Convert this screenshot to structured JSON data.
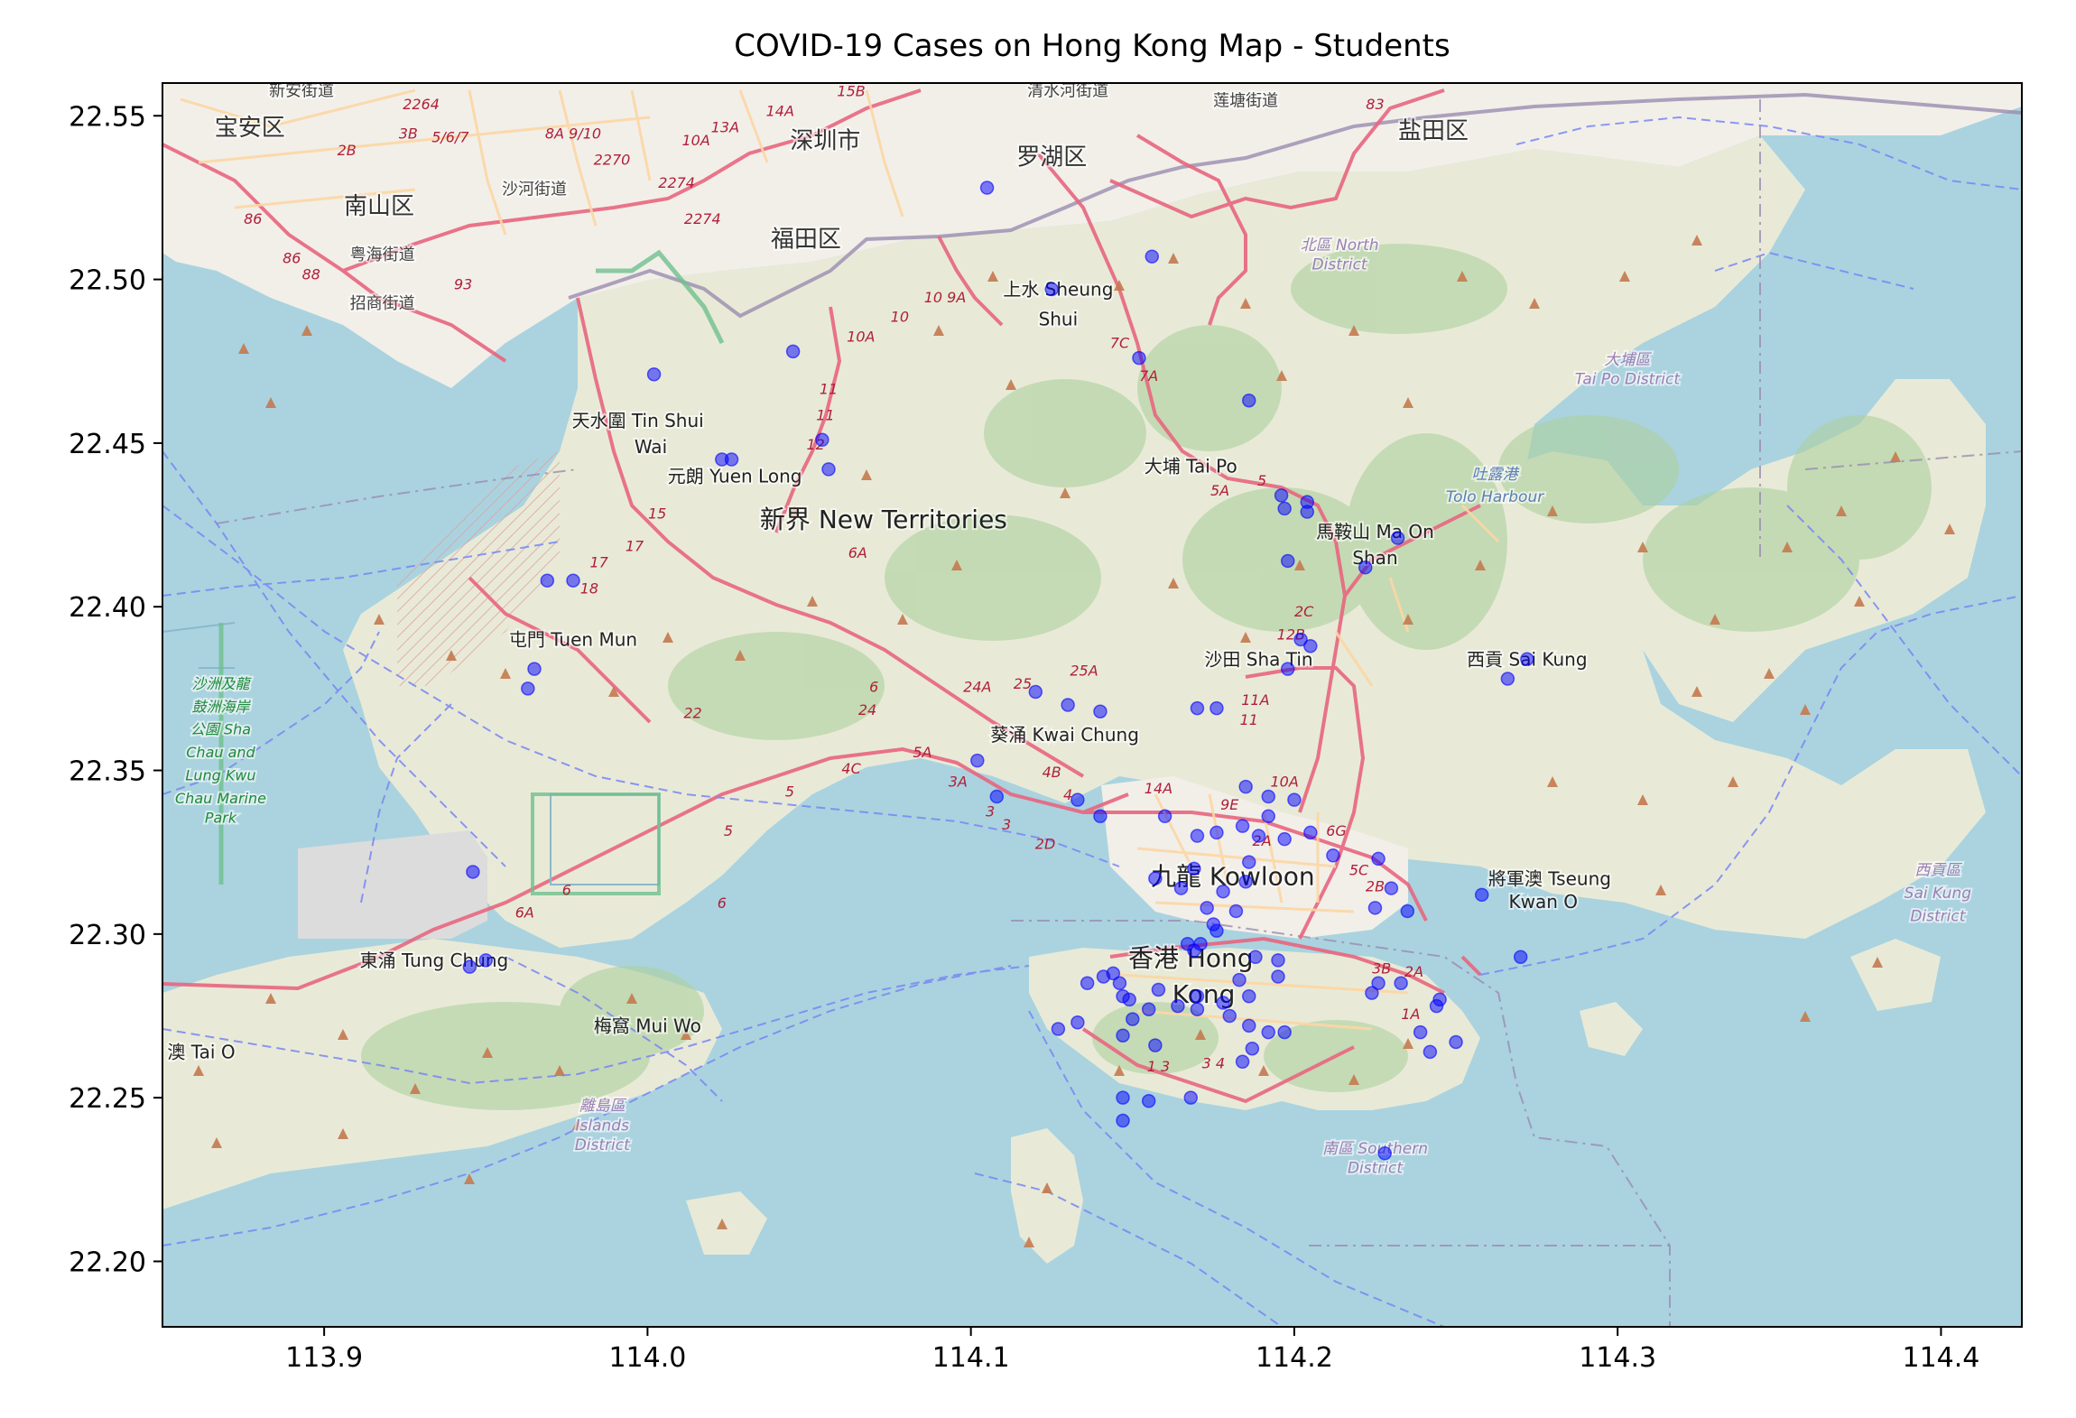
{
  "figure": {
    "title": "COVID-19 Cases on Hong Kong Map - Students"
  },
  "chart_data": {
    "type": "scatter",
    "title": "COVID-19 Cases on Hong Kong Map - Students",
    "xlabel": "",
    "ylabel": "",
    "xlim": [
      113.85,
      114.425
    ],
    "ylim": [
      22.18,
      22.56
    ],
    "xticks": [
      113.9,
      114.0,
      114.1,
      114.2,
      114.3,
      114.4
    ],
    "xtick_labels": [
      "113.9",
      "114.0",
      "114.1",
      "114.2",
      "114.3",
      "114.4"
    ],
    "yticks": [
      22.2,
      22.25,
      22.3,
      22.35,
      22.4,
      22.45,
      22.5,
      22.55
    ],
    "ytick_labels": [
      "22.20",
      "22.25",
      "22.30",
      "22.35",
      "22.40",
      "22.45",
      "22.50",
      "22.55"
    ],
    "grid": false,
    "marker_color": "#0000ff",
    "points": [
      {
        "x": 114.105,
        "y": 22.528
      },
      {
        "x": 114.156,
        "y": 22.507
      },
      {
        "x": 114.125,
        "y": 22.497
      },
      {
        "x": 114.045,
        "y": 22.478
      },
      {
        "x": 114.152,
        "y": 22.476
      },
      {
        "x": 114.002,
        "y": 22.471
      },
      {
        "x": 114.054,
        "y": 22.451
      },
      {
        "x": 114.023,
        "y": 22.445
      },
      {
        "x": 114.026,
        "y": 22.445
      },
      {
        "x": 114.056,
        "y": 22.442
      },
      {
        "x": 114.186,
        "y": 22.463
      },
      {
        "x": 114.196,
        "y": 22.434
      },
      {
        "x": 114.197,
        "y": 22.43
      },
      {
        "x": 114.204,
        "y": 22.432
      },
      {
        "x": 114.204,
        "y": 22.429
      },
      {
        "x": 114.232,
        "y": 22.421
      },
      {
        "x": 114.198,
        "y": 22.414
      },
      {
        "x": 114.222,
        "y": 22.412
      },
      {
        "x": 113.969,
        "y": 22.408
      },
      {
        "x": 113.977,
        "y": 22.408
      },
      {
        "x": 114.202,
        "y": 22.39
      },
      {
        "x": 114.205,
        "y": 22.388
      },
      {
        "x": 114.198,
        "y": 22.381
      },
      {
        "x": 114.272,
        "y": 22.384
      },
      {
        "x": 114.266,
        "y": 22.378
      },
      {
        "x": 113.965,
        "y": 22.381
      },
      {
        "x": 113.963,
        "y": 22.375
      },
      {
        "x": 114.12,
        "y": 22.374
      },
      {
        "x": 114.13,
        "y": 22.37
      },
      {
        "x": 114.14,
        "y": 22.368
      },
      {
        "x": 114.17,
        "y": 22.369
      },
      {
        "x": 114.176,
        "y": 22.369
      },
      {
        "x": 114.102,
        "y": 22.353
      },
      {
        "x": 114.108,
        "y": 22.342
      },
      {
        "x": 114.133,
        "y": 22.341
      },
      {
        "x": 114.14,
        "y": 22.336
      },
      {
        "x": 114.16,
        "y": 22.336
      },
      {
        "x": 114.185,
        "y": 22.345
      },
      {
        "x": 114.192,
        "y": 22.342
      },
      {
        "x": 114.2,
        "y": 22.341
      },
      {
        "x": 114.192,
        "y": 22.336
      },
      {
        "x": 114.184,
        "y": 22.333
      },
      {
        "x": 114.176,
        "y": 22.331
      },
      {
        "x": 114.17,
        "y": 22.33
      },
      {
        "x": 114.189,
        "y": 22.33
      },
      {
        "x": 114.197,
        "y": 22.329
      },
      {
        "x": 114.205,
        "y": 22.331
      },
      {
        "x": 114.212,
        "y": 22.324
      },
      {
        "x": 114.226,
        "y": 22.323
      },
      {
        "x": 114.169,
        "y": 22.32
      },
      {
        "x": 114.157,
        "y": 22.317
      },
      {
        "x": 114.165,
        "y": 22.314
      },
      {
        "x": 114.186,
        "y": 22.322
      },
      {
        "x": 114.185,
        "y": 22.316
      },
      {
        "x": 114.178,
        "y": 22.313
      },
      {
        "x": 114.173,
        "y": 22.308
      },
      {
        "x": 114.175,
        "y": 22.303
      },
      {
        "x": 114.176,
        "y": 22.301
      },
      {
        "x": 114.182,
        "y": 22.307
      },
      {
        "x": 114.171,
        "y": 22.297
      },
      {
        "x": 114.167,
        "y": 22.297
      },
      {
        "x": 114.169,
        "y": 22.295
      },
      {
        "x": 114.225,
        "y": 22.308
      },
      {
        "x": 114.235,
        "y": 22.307
      },
      {
        "x": 114.258,
        "y": 22.312
      },
      {
        "x": 114.23,
        "y": 22.314
      },
      {
        "x": 114.195,
        "y": 22.292
      },
      {
        "x": 114.188,
        "y": 22.293
      },
      {
        "x": 114.195,
        "y": 22.287
      },
      {
        "x": 114.183,
        "y": 22.286
      },
      {
        "x": 114.178,
        "y": 22.279
      },
      {
        "x": 114.186,
        "y": 22.281
      },
      {
        "x": 114.17,
        "y": 22.281
      },
      {
        "x": 114.164,
        "y": 22.278
      },
      {
        "x": 114.17,
        "y": 22.277
      },
      {
        "x": 114.18,
        "y": 22.275
      },
      {
        "x": 114.186,
        "y": 22.272
      },
      {
        "x": 114.192,
        "y": 22.27
      },
      {
        "x": 114.197,
        "y": 22.27
      },
      {
        "x": 114.144,
        "y": 22.288
      },
      {
        "x": 114.141,
        "y": 22.287
      },
      {
        "x": 114.146,
        "y": 22.285
      },
      {
        "x": 114.136,
        "y": 22.285
      },
      {
        "x": 114.147,
        "y": 22.281
      },
      {
        "x": 114.149,
        "y": 22.28
      },
      {
        "x": 114.158,
        "y": 22.283
      },
      {
        "x": 114.155,
        "y": 22.277
      },
      {
        "x": 114.15,
        "y": 22.274
      },
      {
        "x": 114.133,
        "y": 22.273
      },
      {
        "x": 114.127,
        "y": 22.271
      },
      {
        "x": 114.147,
        "y": 22.269
      },
      {
        "x": 114.157,
        "y": 22.266
      },
      {
        "x": 114.187,
        "y": 22.265
      },
      {
        "x": 114.184,
        "y": 22.261
      },
      {
        "x": 114.233,
        "y": 22.285
      },
      {
        "x": 114.226,
        "y": 22.285
      },
      {
        "x": 114.224,
        "y": 22.282
      },
      {
        "x": 114.245,
        "y": 22.28
      },
      {
        "x": 114.244,
        "y": 22.278
      },
      {
        "x": 114.242,
        "y": 22.264
      },
      {
        "x": 114.239,
        "y": 22.27
      },
      {
        "x": 114.168,
        "y": 22.25
      },
      {
        "x": 114.147,
        "y": 22.25
      },
      {
        "x": 114.155,
        "y": 22.249
      },
      {
        "x": 114.147,
        "y": 22.243
      },
      {
        "x": 114.228,
        "y": 22.233
      },
      {
        "x": 113.946,
        "y": 22.319
      },
      {
        "x": 113.95,
        "y": 22.292
      },
      {
        "x": 113.945,
        "y": 22.29
      },
      {
        "x": 114.27,
        "y": 22.293
      },
      {
        "x": 114.25,
        "y": 22.267
      }
    ]
  },
  "map": {
    "labels": [
      {
        "text": "深圳市",
        "lon": 114.055,
        "lat": 22.54,
        "kind": "city"
      },
      {
        "text": "罗湖区",
        "lon": 114.125,
        "lat": 22.535,
        "kind": "city"
      },
      {
        "text": "盐田区",
        "lon": 114.243,
        "lat": 22.543,
        "kind": "city"
      },
      {
        "text": "宝安区",
        "lon": 113.877,
        "lat": 22.544,
        "kind": "city"
      },
      {
        "text": "南山区",
        "lon": 113.917,
        "lat": 22.52,
        "kind": "city"
      },
      {
        "text": "福田区",
        "lon": 114.049,
        "lat": 22.51,
        "kind": "city"
      },
      {
        "text": "新安街道",
        "lon": 113.893,
        "lat": 22.556,
        "kind": "street"
      },
      {
        "text": "清水河街道",
        "lon": 114.13,
        "lat": 22.556,
        "kind": "street"
      },
      {
        "text": "莲塘街道",
        "lon": 114.185,
        "lat": 22.553,
        "kind": "street"
      },
      {
        "text": "沙河街道",
        "lon": 113.965,
        "lat": 22.526,
        "kind": "street"
      },
      {
        "text": "粤海街道",
        "lon": 113.918,
        "lat": 22.506,
        "kind": "street"
      },
      {
        "text": "招商街道",
        "lon": 113.918,
        "lat": 22.491,
        "kind": "street"
      },
      {
        "text": "北區 North",
        "lon": 114.214,
        "lat": 22.509,
        "kind": "district"
      },
      {
        "text": "District",
        "lon": 114.214,
        "lat": 22.503,
        "kind": "district"
      },
      {
        "text": "上水 Sheung",
        "lon": 114.127,
        "lat": 22.495,
        "kind": "place"
      },
      {
        "text": "Shui",
        "lon": 114.127,
        "lat": 22.486,
        "kind": "place"
      },
      {
        "text": "大埔區",
        "lon": 114.303,
        "lat": 22.474,
        "kind": "district"
      },
      {
        "text": "Tai Po District",
        "lon": 114.303,
        "lat": 22.468,
        "kind": "district"
      },
      {
        "text": "天水圍 Tin Shui",
        "lon": 113.997,
        "lat": 22.455,
        "kind": "place"
      },
      {
        "text": "Wai",
        "lon": 114.001,
        "lat": 22.447,
        "kind": "place"
      },
      {
        "text": "元朗 Yuen Long",
        "lon": 114.027,
        "lat": 22.438,
        "kind": "place"
      },
      {
        "text": "大埔 Tai Po",
        "lon": 114.168,
        "lat": 22.441,
        "kind": "place"
      },
      {
        "text": "吐露港",
        "lon": 114.262,
        "lat": 22.439,
        "kind": "water"
      },
      {
        "text": "Tolo Harbour",
        "lon": 114.262,
        "lat": 22.432,
        "kind": "water"
      },
      {
        "text": "新界 New Territories",
        "lon": 114.073,
        "lat": 22.424,
        "kind": "region"
      },
      {
        "text": "馬鞍山 Ma On",
        "lon": 114.225,
        "lat": 22.421,
        "kind": "place"
      },
      {
        "text": "Shan",
        "lon": 114.225,
        "lat": 22.413,
        "kind": "place"
      },
      {
        "text": "屯門 Tuen Mun",
        "lon": 113.977,
        "lat": 22.388,
        "kind": "place"
      },
      {
        "text": "沙田 Sha Tin",
        "lon": 114.189,
        "lat": 22.382,
        "kind": "place"
      },
      {
        "text": "西貢 Sai Kung",
        "lon": 114.272,
        "lat": 22.382,
        "kind": "place"
      },
      {
        "text": "沙洲及龍",
        "lon": 113.868,
        "lat": 22.375,
        "kind": "park"
      },
      {
        "text": "鼓洲海岸",
        "lon": 113.868,
        "lat": 22.368,
        "kind": "park"
      },
      {
        "text": "公園 Sha",
        "lon": 113.868,
        "lat": 22.361,
        "kind": "park"
      },
      {
        "text": "Chau and",
        "lon": 113.868,
        "lat": 22.354,
        "kind": "park"
      },
      {
        "text": "Lung Kwu",
        "lon": 113.868,
        "lat": 22.347,
        "kind": "park"
      },
      {
        "text": "Chau Marine",
        "lon": 113.868,
        "lat": 22.34,
        "kind": "park"
      },
      {
        "text": "Park",
        "lon": 113.868,
        "lat": 22.334,
        "kind": "park"
      },
      {
        "text": "葵涌 Kwai Chung",
        "lon": 114.129,
        "lat": 22.359,
        "kind": "place"
      },
      {
        "text": "九龍 Kowloon",
        "lon": 114.181,
        "lat": 22.315,
        "kind": "region"
      },
      {
        "text": "將軍澳 Tseung",
        "lon": 114.279,
        "lat": 22.315,
        "kind": "place"
      },
      {
        "text": "Kwan O",
        "lon": 114.277,
        "lat": 22.308,
        "kind": "place"
      },
      {
        "text": "西貢區",
        "lon": 114.399,
        "lat": 22.318,
        "kind": "district"
      },
      {
        "text": "Sai Kung",
        "lon": 114.399,
        "lat": 22.311,
        "kind": "district"
      },
      {
        "text": "District",
        "lon": 114.399,
        "lat": 22.304,
        "kind": "district"
      },
      {
        "text": "東涌 Tung Chung",
        "lon": 113.934,
        "lat": 22.29,
        "kind": "place"
      },
      {
        "text": "香港 Hong",
        "lon": 114.168,
        "lat": 22.29,
        "kind": "region"
      },
      {
        "text": "Kong",
        "lon": 114.172,
        "lat": 22.279,
        "kind": "region"
      },
      {
        "text": "梅窩 Mui Wo",
        "lon": 114.0,
        "lat": 22.27,
        "kind": "place"
      },
      {
        "text": "澳 Tai O",
        "lon": 113.862,
        "lat": 22.262,
        "kind": "place"
      },
      {
        "text": "離島區",
        "lon": 113.986,
        "lat": 22.246,
        "kind": "district"
      },
      {
        "text": "Islands",
        "lon": 113.986,
        "lat": 22.24,
        "kind": "district"
      },
      {
        "text": "District",
        "lon": 113.986,
        "lat": 22.234,
        "kind": "district"
      },
      {
        "text": "南區 Southern",
        "lon": 114.225,
        "lat": 22.233,
        "kind": "district"
      },
      {
        "text": "District",
        "lon": 114.225,
        "lat": 22.227,
        "kind": "district"
      }
    ],
    "route_labels": [
      {
        "text": "2264",
        "lon": 113.93,
        "lat": 22.552
      },
      {
        "text": "8A 9/10",
        "lon": 113.977,
        "lat": 22.543
      },
      {
        "text": "13A",
        "lon": 114.024,
        "lat": 22.545
      },
      {
        "text": "14A",
        "lon": 114.041,
        "lat": 22.55
      },
      {
        "text": "15B",
        "lon": 114.063,
        "lat": 22.556
      },
      {
        "text": "10A",
        "lon": 114.015,
        "lat": 22.541
      },
      {
        "text": "2270",
        "lon": 113.989,
        "lat": 22.535
      },
      {
        "text": "2274",
        "lon": 114.009,
        "lat": 22.528
      },
      {
        "text": "2274",
        "lon": 114.017,
        "lat": 22.517
      },
      {
        "text": "3B",
        "lon": 113.926,
        "lat": 22.543
      },
      {
        "text": "5/6/7",
        "lon": 113.939,
        "lat": 22.542
      },
      {
        "text": "2B",
        "lon": 113.907,
        "lat": 22.538
      },
      {
        "text": "86",
        "lon": 113.878,
        "lat": 22.517
      },
      {
        "text": "86",
        "lon": 113.89,
        "lat": 22.505
      },
      {
        "text": "88",
        "lon": 113.896,
        "lat": 22.5
      },
      {
        "text": "93",
        "lon": 113.943,
        "lat": 22.497
      },
      {
        "text": "83",
        "lon": 114.225,
        "lat": 22.552
      },
      {
        "text": "10 9A",
        "lon": 114.092,
        "lat": 22.493
      },
      {
        "text": "10A",
        "lon": 114.066,
        "lat": 22.481
      },
      {
        "text": "10",
        "lon": 114.078,
        "lat": 22.487
      },
      {
        "text": "7C",
        "lon": 114.146,
        "lat": 22.479
      },
      {
        "text": "7A",
        "lon": 114.155,
        "lat": 22.469
      },
      {
        "text": "11",
        "lon": 114.056,
        "lat": 22.465
      },
      {
        "text": "11",
        "lon": 114.055,
        "lat": 22.457
      },
      {
        "text": "12",
        "lon": 114.052,
        "lat": 22.448
      },
      {
        "text": "5A",
        "lon": 114.177,
        "lat": 22.434
      },
      {
        "text": "5",
        "lon": 114.19,
        "lat": 22.437
      },
      {
        "text": "15",
        "lon": 114.003,
        "lat": 22.427
      },
      {
        "text": "17",
        "lon": 113.996,
        "lat": 22.417
      },
      {
        "text": "17",
        "lon": 113.985,
        "lat": 22.412
      },
      {
        "text": "18",
        "lon": 113.982,
        "lat": 22.404
      },
      {
        "text": "6A",
        "lon": 114.065,
        "lat": 22.415
      },
      {
        "text": "2C",
        "lon": 114.203,
        "lat": 22.397
      },
      {
        "text": "12B",
        "lon": 114.199,
        "lat": 22.39
      },
      {
        "text": "25A",
        "lon": 114.135,
        "lat": 22.379
      },
      {
        "text": "24A",
        "lon": 114.102,
        "lat": 22.374
      },
      {
        "text": "25",
        "lon": 114.116,
        "lat": 22.375
      },
      {
        "text": "11A",
        "lon": 114.188,
        "lat": 22.37
      },
      {
        "text": "11",
        "lon": 114.186,
        "lat": 22.364
      },
      {
        "text": "6",
        "lon": 114.07,
        "lat": 22.374
      },
      {
        "text": "24",
        "lon": 114.068,
        "lat": 22.367
      },
      {
        "text": "22",
        "lon": 114.014,
        "lat": 22.366
      },
      {
        "text": "5A",
        "lon": 114.085,
        "lat": 22.354
      },
      {
        "text": "4C",
        "lon": 114.063,
        "lat": 22.349
      },
      {
        "text": "4B",
        "lon": 114.125,
        "lat": 22.348
      },
      {
        "text": "4",
        "lon": 114.13,
        "lat": 22.341
      },
      {
        "text": "3A",
        "lon": 114.096,
        "lat": 22.345
      },
      {
        "text": "3",
        "lon": 114.106,
        "lat": 22.336
      },
      {
        "text": "3",
        "lon": 114.111,
        "lat": 22.332
      },
      {
        "text": "14A",
        "lon": 114.158,
        "lat": 22.343
      },
      {
        "text": "10A",
        "lon": 114.197,
        "lat": 22.345
      },
      {
        "text": "9E",
        "lon": 114.18,
        "lat": 22.338
      },
      {
        "text": "2A",
        "lon": 114.19,
        "lat": 22.327
      },
      {
        "text": "6G",
        "lon": 114.213,
        "lat": 22.33
      },
      {
        "text": "5C",
        "lon": 114.22,
        "lat": 22.318
      },
      {
        "text": "2B",
        "lon": 114.225,
        "lat": 22.313
      },
      {
        "text": "2D",
        "lon": 114.123,
        "lat": 22.326
      },
      {
        "text": "5",
        "lon": 114.044,
        "lat": 22.342
      },
      {
        "text": "5",
        "lon": 114.025,
        "lat": 22.33
      },
      {
        "text": "6",
        "lon": 114.023,
        "lat": 22.308
      },
      {
        "text": "6A",
        "lon": 113.962,
        "lat": 22.305
      },
      {
        "text": "6",
        "lon": 113.975,
        "lat": 22.312
      },
      {
        "text": "3B",
        "lon": 114.227,
        "lat": 22.288
      },
      {
        "text": "2A",
        "lon": 114.237,
        "lat": 22.287
      },
      {
        "text": "1A",
        "lon": 114.236,
        "lat": 22.274
      },
      {
        "text": "1 3",
        "lon": 114.158,
        "lat": 22.258
      },
      {
        "text": "3 4",
        "lon": 114.175,
        "lat": 22.259
      }
    ]
  }
}
